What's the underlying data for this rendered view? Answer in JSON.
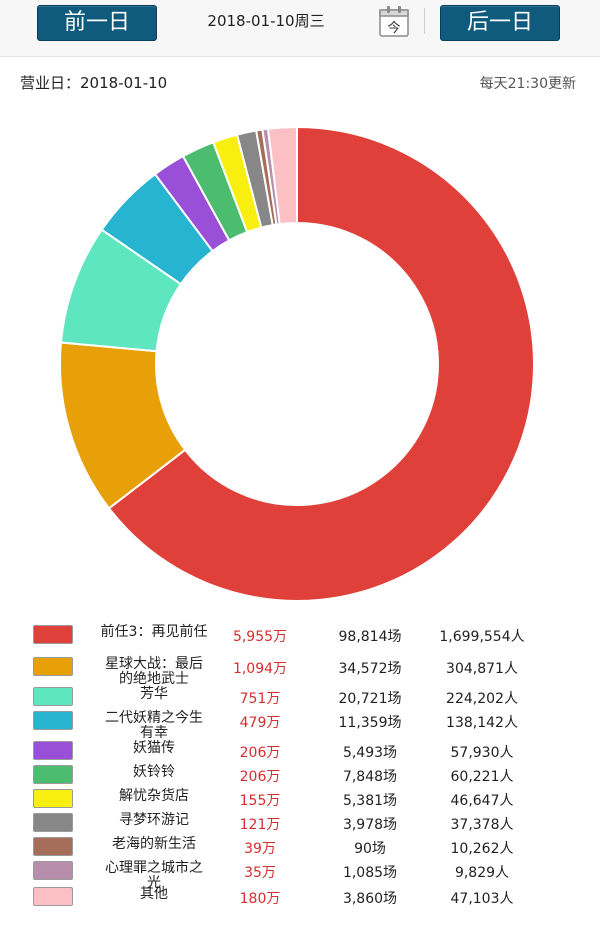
{
  "header": {
    "prev_label": "前一日",
    "next_label": "后一日",
    "date": "2018-01-10周三",
    "today_icon": "calendar-icon",
    "today_label": "今"
  },
  "info": {
    "business_day_label": "营业日：",
    "business_day": "2018-01-10",
    "update_note": "每天21:30更新"
  },
  "chart_data": {
    "type": "pie",
    "style": "donut",
    "categories": [
      "前任3：再见前任",
      "星球大战：最后的绝地武士",
      "芳华",
      "二代妖精之今生有幸",
      "妖猫传",
      "妖铃铃",
      "解忧杂货店",
      "寻梦环游记",
      "老海的新生活",
      "心理罪之城市之光",
      "其他"
    ],
    "values": [
      5955,
      1094,
      751,
      479,
      206,
      206,
      155,
      121,
      39,
      35,
      180
    ],
    "colors": [
      "#e0403a",
      "#e8a008",
      "#5de6c0",
      "#27b4d0",
      "#9a4fd8",
      "#4cbd6e",
      "#f8ee10",
      "#878787",
      "#a66e58",
      "#b78fad",
      "#fcbfc3"
    ]
  },
  "legend": {
    "rows": [
      {
        "name": "前任3：再见前任",
        "box": "5,955万",
        "shows": "98,814场",
        "people": "1,699,554人"
      },
      {
        "name": "星球大战：最后的绝地武士",
        "box": "1,094万",
        "shows": "34,572场",
        "people": "304,871人"
      },
      {
        "name": "芳华",
        "box": "751万",
        "shows": "20,721场",
        "people": "224,202人"
      },
      {
        "name": "二代妖精之今生有幸",
        "box": "479万",
        "shows": "11,359场",
        "people": "138,142人"
      },
      {
        "name": "妖猫传",
        "box": "206万",
        "shows": "5,493场",
        "people": "57,930人"
      },
      {
        "name": "妖铃铃",
        "box": "206万",
        "shows": "7,848场",
        "people": "60,221人"
      },
      {
        "name": "解忧杂货店",
        "box": "155万",
        "shows": "5,381场",
        "people": "46,647人"
      },
      {
        "name": "寻梦环游记",
        "box": "121万",
        "shows": "3,978场",
        "people": "37,378人"
      },
      {
        "name": "老海的新生活",
        "box": "39万",
        "shows": "90场",
        "people": "10,262人"
      },
      {
        "name": "心理罪之城市之光",
        "box": "35万",
        "shows": "1,085场",
        "people": "9,829人"
      },
      {
        "name": "其他",
        "box": "180万",
        "shows": "3,860场",
        "people": "47,103人"
      }
    ]
  }
}
